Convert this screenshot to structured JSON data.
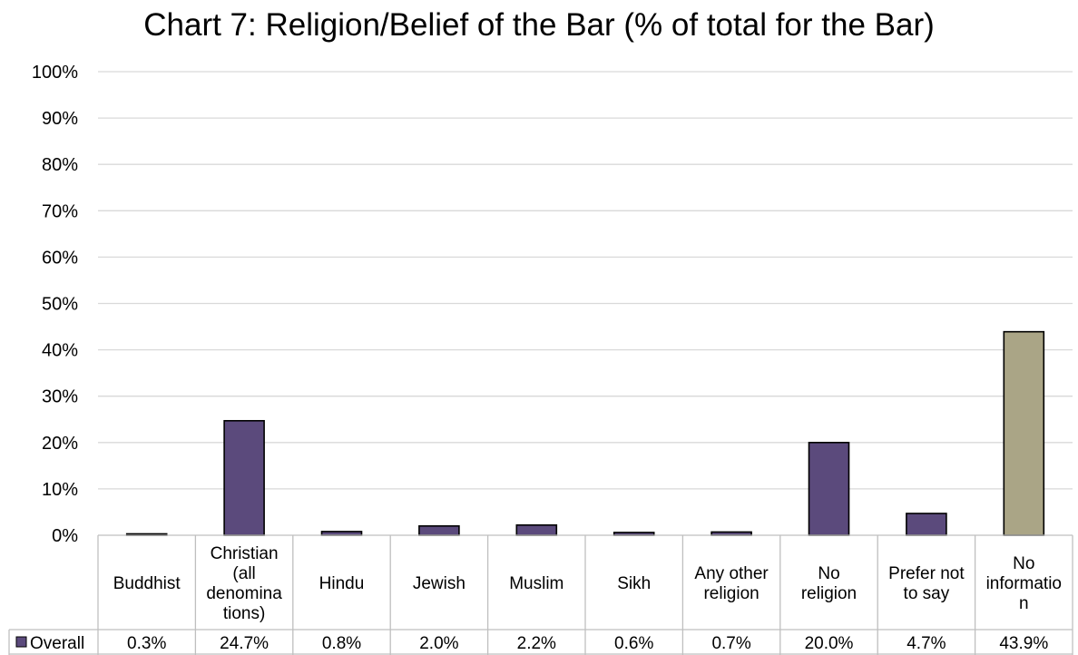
{
  "chart_data": {
    "type": "bar",
    "title": "Chart 7: Religion/Belief of the Bar (% of total for the Bar)",
    "categories": [
      "Buddhist",
      "Christian (all denominations)",
      "Hindu",
      "Jewish",
      "Muslim",
      "Sikh",
      "Any other religion",
      "No religion",
      "Prefer not to say",
      "No information"
    ],
    "category_label_lines": [
      [
        "Buddhist"
      ],
      [
        "Christian",
        "(all",
        "denomina",
        "tions)"
      ],
      [
        "Hindu"
      ],
      [
        "Jewish"
      ],
      [
        "Muslim"
      ],
      [
        "Sikh"
      ],
      [
        "Any other",
        "religion"
      ],
      [
        "No",
        "religion"
      ],
      [
        "Prefer not",
        "to say"
      ],
      [
        "No",
        "informatio",
        "n"
      ]
    ],
    "series": [
      {
        "name": "Overall",
        "values": [
          0.3,
          24.7,
          0.8,
          2.0,
          2.2,
          0.6,
          0.7,
          20.0,
          4.7,
          43.9
        ],
        "value_labels": [
          "0.3%",
          "24.7%",
          "0.8%",
          "2.0%",
          "2.2%",
          "0.6%",
          "0.7%",
          "20.0%",
          "4.7%",
          "43.9%"
        ]
      }
    ],
    "colors": {
      "series": "#5b4a7c",
      "highlight": "#aaa586",
      "gridline": "#d9d9d9",
      "table_border": "#bfbfbf"
    },
    "highlight_categories": [
      "No information"
    ],
    "ylim": [
      0,
      100
    ],
    "y_ticks": [
      0,
      10,
      20,
      30,
      40,
      50,
      60,
      70,
      80,
      90,
      100
    ],
    "y_tick_labels": [
      "0%",
      "10%",
      "20%",
      "30%",
      "40%",
      "50%",
      "60%",
      "70%",
      "80%",
      "90%",
      "100%"
    ],
    "grid": true,
    "legend": "data-table"
  }
}
